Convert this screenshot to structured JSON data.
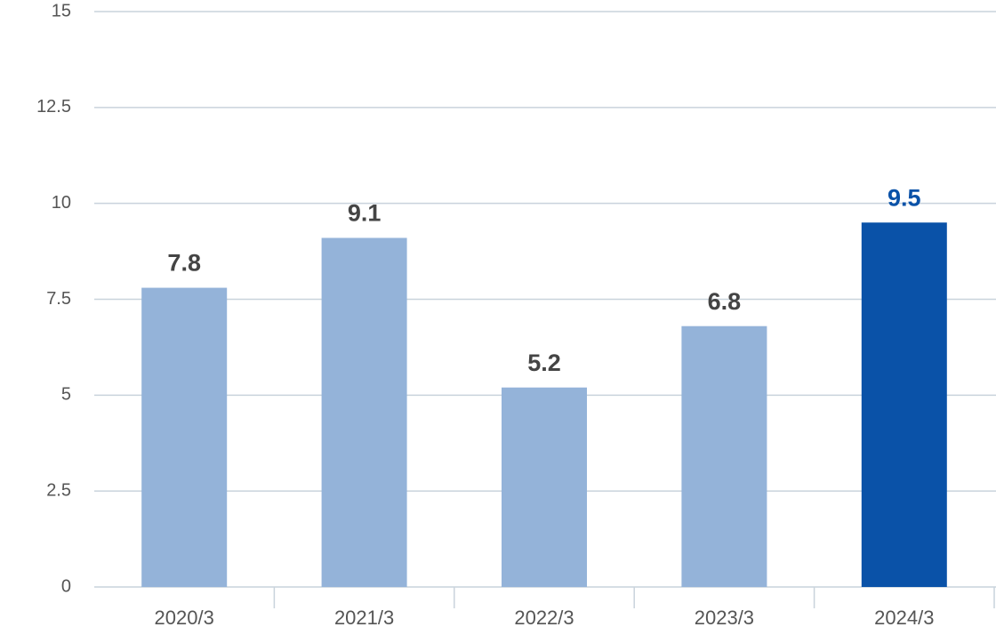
{
  "chart_data": {
    "type": "bar",
    "categories": [
      "2020/3",
      "2021/3",
      "2022/3",
      "2023/3",
      "2024/3"
    ],
    "values": [
      7.8,
      9.1,
      5.2,
      6.8,
      9.5
    ],
    "colors": [
      "#94b3d9",
      "#94b3d9",
      "#94b3d9",
      "#94b3d9",
      "#0a52a8"
    ],
    "label_colors": [
      "#444444",
      "#444444",
      "#444444",
      "#444444",
      "#0a52a8"
    ],
    "ylim": [
      0,
      15
    ],
    "yticks": [
      0,
      2.5,
      5,
      7.5,
      10,
      12.5,
      15
    ],
    "grid": true
  }
}
